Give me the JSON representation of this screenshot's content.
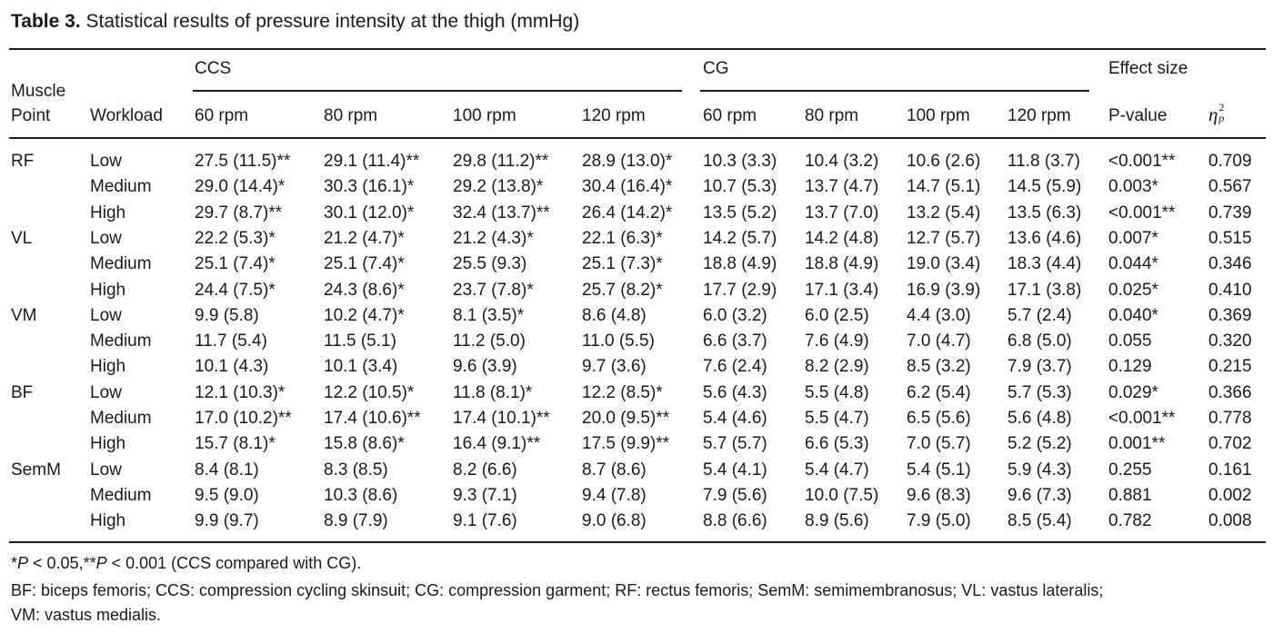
{
  "caption": {
    "label": "Table 3.",
    "text": "Statistical results of pressure intensity at the thigh (mmHg)"
  },
  "header": {
    "muscle_point_line1": "Muscle",
    "muscle_point_line2": "Point",
    "workload": "Workload",
    "group_ccs": "CCS",
    "group_cg": "CG",
    "group_effect": "Effect size",
    "rpm": [
      "60 rpm",
      "80 rpm",
      "100 rpm",
      "120 rpm",
      "60 rpm",
      "80 rpm",
      "100 rpm",
      "120 rpm"
    ],
    "pvalue": "P-value",
    "eta_main": "η",
    "eta_sup": "2",
    "eta_sub": "p"
  },
  "rows": [
    {
      "muscle": "RF",
      "workload": "Low",
      "values": [
        "27.5 (11.5)**",
        "29.1 (11.4)**",
        "29.8 (11.2)**",
        "28.9 (13.0)*",
        "10.3 (3.3)",
        "10.4 (3.2)",
        "10.6 (2.6)",
        "11.8 (3.7)"
      ],
      "p": "<0.001**",
      "eta": "0.709"
    },
    {
      "muscle": "",
      "workload": "Medium",
      "values": [
        "29.0 (14.4)*",
        "30.3 (16.1)*",
        "29.2 (13.8)*",
        "30.4 (16.4)*",
        "10.7 (5.3)",
        "13.7 (4.7)",
        "14.7 (5.1)",
        "14.5 (5.9)"
      ],
      "p": "0.003*",
      "eta": "0.567"
    },
    {
      "muscle": "",
      "workload": "High",
      "values": [
        "29.7 (8.7)**",
        "30.1 (12.0)*",
        "32.4 (13.7)**",
        "26.4 (14.2)*",
        "13.5 (5.2)",
        "13.7 (7.0)",
        "13.2 (5.4)",
        "13.5 (6.3)"
      ],
      "p": "<0.001**",
      "eta": "0.739"
    },
    {
      "muscle": "VL",
      "workload": "Low",
      "values": [
        "22.2 (5.3)*",
        "21.2 (4.7)*",
        "21.2 (4.3)*",
        "22.1 (6.3)*",
        "14.2 (5.7)",
        "14.2 (4.8)",
        "12.7 (5.7)",
        "13.6 (4.6)"
      ],
      "p": "0.007*",
      "eta": "0.515"
    },
    {
      "muscle": "",
      "workload": "Medium",
      "values": [
        "25.1 (7.4)*",
        "25.1 (7.4)*",
        "25.5 (9.3)",
        "25.1 (7.3)*",
        "18.8 (4.9)",
        "18.8 (4.9)",
        "19.0 (3.4)",
        "18.3 (4.4)"
      ],
      "p": "0.044*",
      "eta": "0.346"
    },
    {
      "muscle": "",
      "workload": "High",
      "values": [
        "24.4 (7.5)*",
        "24.3 (8.6)*",
        "23.7 (7.8)*",
        "25.7 (8.2)*",
        "17.7 (2.9)",
        "17.1 (3.4)",
        "16.9 (3.9)",
        "17.1 (3.8)"
      ],
      "p": "0.025*",
      "eta": "0.410"
    },
    {
      "muscle": "VM",
      "workload": "Low",
      "values": [
        "9.9 (5.8)",
        "10.2 (4.7)*",
        "8.1 (3.5)*",
        "8.6 (4.8)",
        "6.0 (3.2)",
        "6.0 (2.5)",
        "4.4 (3.0)",
        "5.7 (2.4)"
      ],
      "p": "0.040*",
      "eta": "0.369"
    },
    {
      "muscle": "",
      "workload": "Medium",
      "values": [
        "11.7 (5.4)",
        "11.5 (5.1)",
        "11.2 (5.0)",
        "11.0 (5.5)",
        "6.6 (3.7)",
        "7.6 (4.9)",
        "7.0 (4.7)",
        "6.8 (5.0)"
      ],
      "p": "0.055",
      "eta": "0.320"
    },
    {
      "muscle": "",
      "workload": "High",
      "values": [
        "10.1 (4.3)",
        "10.1 (3.4)",
        "9.6 (3.9)",
        "9.7 (3.6)",
        "7.6 (2.4)",
        "8.2 (2.9)",
        "8.5 (3.2)",
        "7.9 (3.7)"
      ],
      "p": "0.129",
      "eta": "0.215"
    },
    {
      "muscle": "BF",
      "workload": "Low",
      "values": [
        "12.1 (10.3)*",
        "12.2 (10.5)*",
        "11.8 (8.1)*",
        "12.2 (8.5)*",
        "5.6 (4.3)",
        "5.5 (4.8)",
        "6.2 (5.4)",
        "5.7 (5.3)"
      ],
      "p": "0.029*",
      "eta": "0.366"
    },
    {
      "muscle": "",
      "workload": "Medium",
      "values": [
        "17.0 (10.2)**",
        "17.4 (10.6)**",
        "17.4 (10.1)**",
        "20.0 (9.5)**",
        "5.4 (4.6)",
        "5.5 (4.7)",
        "6.5 (5.6)",
        "5.6 (4.8)"
      ],
      "p": "<0.001**",
      "eta": "0.778"
    },
    {
      "muscle": "",
      "workload": "High",
      "values": [
        "15.7 (8.1)*",
        "15.8 (8.6)*",
        "16.4 (9.1)**",
        "17.5 (9.9)**",
        "5.7 (5.7)",
        "6.6 (5.3)",
        "7.0 (5.7)",
        "5.2 (5.2)"
      ],
      "p": "0.001**",
      "eta": "0.702"
    },
    {
      "muscle": "SemM",
      "workload": "Low",
      "values": [
        "8.4 (8.1)",
        "8.3 (8.5)",
        "8.2 (6.6)",
        "8.7 (8.6)",
        "5.4 (4.1)",
        "5.4 (4.7)",
        "5.4 (5.1)",
        "5.9 (4.3)"
      ],
      "p": "0.255",
      "eta": "0.161"
    },
    {
      "muscle": "",
      "workload": "Medium",
      "values": [
        "9.5 (9.0)",
        "10.3 (8.6)",
        "9.3 (7.1)",
        "9.4 (7.8)",
        "7.9 (5.6)",
        "10.0 (7.5)",
        "9.6 (8.3)",
        "9.6 (7.3)"
      ],
      "p": "0.881",
      "eta": "0.002"
    },
    {
      "muscle": "",
      "workload": "High",
      "values": [
        "9.9 (9.7)",
        "8.9 (7.9)",
        "9.1 (7.6)",
        "9.0 (6.8)",
        "8.8 (6.6)",
        "8.9 (5.6)",
        "7.9 (5.0)",
        "8.5 (5.4)"
      ],
      "p": "0.782",
      "eta": "0.008"
    }
  ],
  "footnotes": {
    "sig_p1": "P",
    "sig_t1": " < 0.05,",
    "sig_p2": "P",
    "sig_t2": " < 0.001 (CCS compared with CG).",
    "star1": "*",
    "star2": "**",
    "abbrev_line1": "BF: biceps femoris; CCS: compression cycling skinsuit; CG: compression garment; RF: rectus femoris; SemM: semimembranosus; VL: vastus lateralis;",
    "abbrev_line2": "VM: vastus medialis."
  }
}
